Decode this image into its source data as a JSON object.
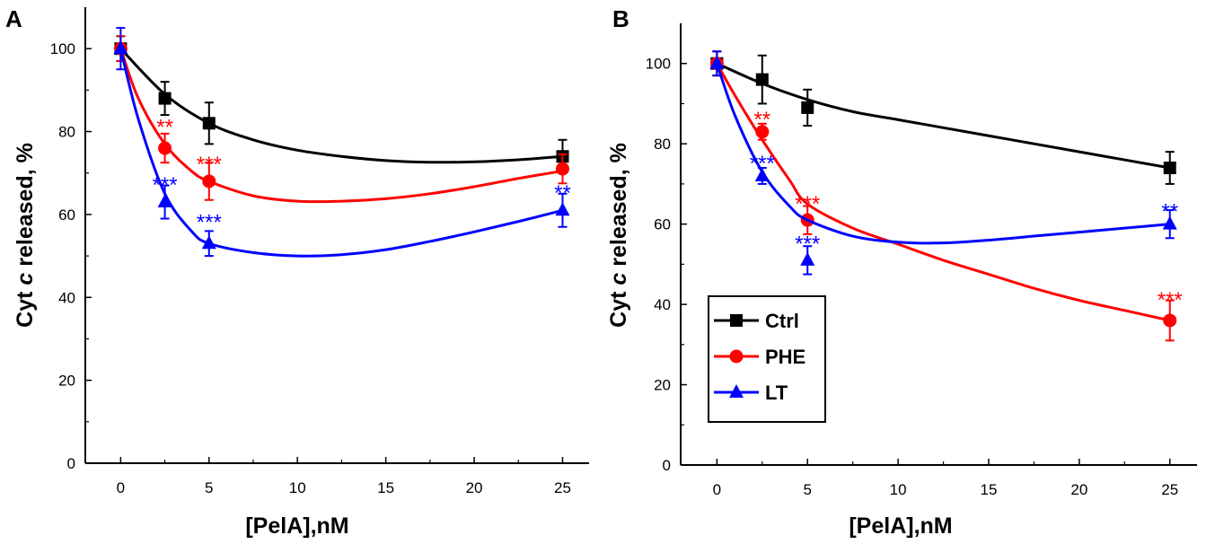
{
  "chart_data": [
    {
      "type": "line",
      "panel": "A",
      "x": [
        0,
        2.5,
        5,
        25
      ],
      "xlabel": "[PelA],nM",
      "ylabel_parts": [
        "Cyt ",
        "c",
        " released, %"
      ],
      "xlim": [
        -2,
        26.5
      ],
      "ylim": [
        0,
        110
      ],
      "xticks": [
        0,
        5,
        10,
        15,
        20,
        25
      ],
      "yticks": [
        0,
        20,
        40,
        60,
        80,
        100
      ],
      "series": [
        {
          "name": "Ctrl",
          "color": "#000000",
          "marker": "square",
          "values": [
            100,
            88,
            82,
            74
          ],
          "errors": [
            3,
            4,
            5,
            4
          ],
          "fit": [
            [
              0,
              100
            ],
            [
              2.5,
              89
            ],
            [
              5,
              82
            ],
            [
              7.5,
              78
            ],
            [
              10,
              75.5
            ],
            [
              12.5,
              74
            ],
            [
              15,
              73
            ],
            [
              17.5,
              72.6
            ],
            [
              20,
              72.7
            ],
            [
              22.5,
              73.2
            ],
            [
              25,
              74
            ]
          ]
        },
        {
          "name": "PHE",
          "color": "#ff0000",
          "marker": "circle",
          "values": [
            100,
            76,
            68,
            71
          ],
          "errors": [
            3,
            3.5,
            4.5,
            3.5
          ],
          "fit": [
            [
              0,
              100
            ],
            [
              1,
              88
            ],
            [
              2.5,
              77
            ],
            [
              4,
              70.5
            ],
            [
              5,
              68
            ],
            [
              7.5,
              64.5
            ],
            [
              10,
              63.2
            ],
            [
              12.5,
              63.2
            ],
            [
              15,
              63.8
            ],
            [
              17.5,
              65
            ],
            [
              20,
              66.7
            ],
            [
              22.5,
              68.7
            ],
            [
              25,
              70.5
            ]
          ]
        },
        {
          "name": "LT",
          "color": "#0000ff",
          "marker": "triangle",
          "values": [
            100,
            63,
            53,
            61
          ],
          "errors": [
            5,
            4,
            3,
            4
          ],
          "fit": [
            [
              0,
              100
            ],
            [
              1,
              83
            ],
            [
              2.5,
              65
            ],
            [
              4,
              56
            ],
            [
              5,
              53
            ],
            [
              7.5,
              50.8
            ],
            [
              10,
              50
            ],
            [
              12.5,
              50.3
            ],
            [
              15,
              51.5
            ],
            [
              17.5,
              53.5
            ],
            [
              20,
              55.8
            ],
            [
              22.5,
              58.3
            ],
            [
              25,
              61
            ]
          ]
        }
      ],
      "annotations": [
        {
          "text": "**",
          "color": "#ff0000",
          "x": 2.5,
          "y": 82
        },
        {
          "text": "***",
          "color": "#ff0000",
          "x": 5,
          "y": 73
        },
        {
          "text": "***",
          "color": "#0000ff",
          "x": 2.5,
          "y": 68
        },
        {
          "text": "***",
          "color": "#0000ff",
          "x": 5,
          "y": 59
        },
        {
          "text": "**",
          "color": "#0000ff",
          "x": 25,
          "y": 66
        }
      ]
    },
    {
      "type": "line",
      "panel": "B",
      "x": [
        0,
        2.5,
        5,
        25
      ],
      "xlabel": "[PelA],nM",
      "ylabel_parts": [
        "Cyt ",
        "c",
        " released, %"
      ],
      "xlim": [
        -2,
        26.5
      ],
      "ylim": [
        0,
        110
      ],
      "xticks": [
        0,
        5,
        10,
        15,
        20,
        25
      ],
      "yticks": [
        0,
        20,
        40,
        60,
        80,
        100
      ],
      "legend": {
        "position": "bottom-left",
        "entries": [
          "Ctrl",
          "PHE",
          "LT"
        ]
      },
      "series": [
        {
          "name": "Ctrl",
          "color": "#000000",
          "marker": "square",
          "values": [
            100,
            96,
            89,
            74
          ],
          "errors": [
            3,
            6,
            4.5,
            4
          ],
          "fit": [
            [
              0,
              100
            ],
            [
              2.5,
              95
            ],
            [
              5,
              91
            ],
            [
              7.5,
              88
            ],
            [
              10,
              86
            ],
            [
              12.5,
              84
            ],
            [
              15,
              82
            ],
            [
              17.5,
              80
            ],
            [
              20,
              78
            ],
            [
              22.5,
              76
            ],
            [
              25,
              74
            ]
          ]
        },
        {
          "name": "PHE",
          "color": "#ff0000",
          "marker": "circle",
          "values": [
            100,
            83,
            61,
            36
          ],
          "errors": [
            3,
            2,
            3.5,
            5
          ],
          "fit": [
            [
              0,
              100
            ],
            [
              1,
              92
            ],
            [
              2.5,
              81
            ],
            [
              4,
              71
            ],
            [
              5,
              65
            ],
            [
              7.5,
              59
            ],
            [
              10,
              55
            ],
            [
              12.5,
              51
            ],
            [
              15,
              47.5
            ],
            [
              17.5,
              44
            ],
            [
              20,
              41
            ],
            [
              22.5,
              38.5
            ],
            [
              25,
              36
            ]
          ]
        },
        {
          "name": "LT",
          "color": "#0000ff",
          "marker": "triangle",
          "values": [
            100,
            72,
            51,
            60
          ],
          "errors": [
            3,
            2,
            3.5,
            3.5
          ],
          "fit": [
            [
              0,
              100
            ],
            [
              1,
              87
            ],
            [
              2.5,
              73
            ],
            [
              4,
              64.5
            ],
            [
              5,
              61
            ],
            [
              7.5,
              57
            ],
            [
              10,
              55.5
            ],
            [
              12.5,
              55.3
            ],
            [
              15,
              56
            ],
            [
              17.5,
              57
            ],
            [
              20,
              58
            ],
            [
              22.5,
              59
            ],
            [
              25,
              60
            ]
          ]
        }
      ],
      "annotations": [
        {
          "text": "**",
          "color": "#ff0000",
          "x": 2.5,
          "y": 87
        },
        {
          "text": "***",
          "color": "#0000ff",
          "x": 2.5,
          "y": 76
        },
        {
          "text": "***",
          "color": "#ff0000",
          "x": 5,
          "y": 66
        },
        {
          "text": "***",
          "color": "#0000ff",
          "x": 5,
          "y": 56
        },
        {
          "text": "**",
          "color": "#0000ff",
          "x": 25,
          "y": 64
        },
        {
          "text": "***",
          "color": "#ff0000",
          "x": 25,
          "y": 42
        }
      ]
    }
  ]
}
